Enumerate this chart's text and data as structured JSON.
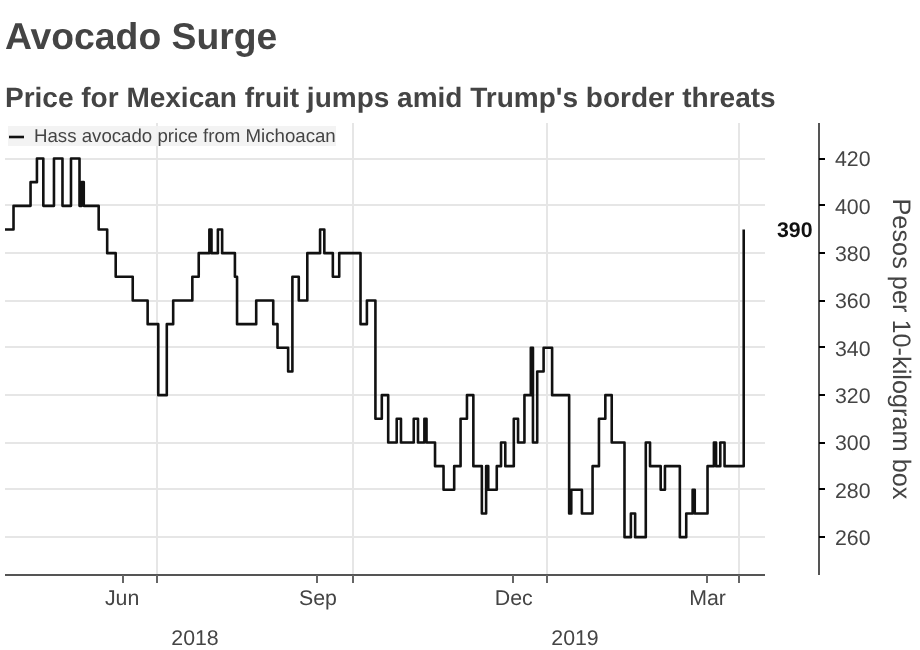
{
  "chart_data": {
    "type": "step",
    "title": "Avocado Surge",
    "subtitle": "Price for Mexican fruit jumps amid Trump's border threats",
    "ylabel": "Pesos per 10-kilogram box",
    "x": [
      "2018-04-21",
      "2018-04-24",
      "2018-04-25",
      "2018-05-02",
      "2018-05-03",
      "2018-05-06",
      "2018-05-08",
      "2018-05-09",
      "2018-05-13",
      "2018-05-14",
      "2018-05-17",
      "2018-05-18",
      "2018-05-21",
      "2018-05-22",
      "2018-05-23",
      "2018-05-26",
      "2018-05-27",
      "2018-05-28",
      "2018-06-02",
      "2018-06-04",
      "2018-06-06",
      "2018-06-08",
      "2018-06-10",
      "2018-06-12",
      "2018-06-19",
      "2018-06-20",
      "2018-06-25",
      "2018-06-27",
      "2018-06-30",
      "2018-07-02",
      "2018-07-06",
      "2018-07-09",
      "2018-07-17",
      "2018-07-18",
      "2018-07-21",
      "2018-07-25",
      "2018-07-26",
      "2018-07-27",
      "2018-07-30",
      "2018-08-01",
      "2018-08-05",
      "2018-08-07",
      "2018-08-08",
      "2018-08-16",
      "2018-08-17",
      "2018-08-23",
      "2018-08-25",
      "2018-08-27",
      "2018-08-30",
      "2018-09-01",
      "2018-09-03",
      "2018-09-06",
      "2018-09-09",
      "2018-09-10",
      "2018-09-15",
      "2018-09-16",
      "2018-09-18",
      "2018-09-20",
      "2018-09-22",
      "2018-09-25",
      "2018-10-01",
      "2018-10-05",
      "2018-10-08",
      "2018-10-12",
      "2018-10-15",
      "2018-10-18",
      "2018-10-22",
      "2018-10-24",
      "2018-10-28",
      "2018-10-30",
      "2018-11-01",
      "2018-11-04",
      "2018-11-05",
      "2018-11-07",
      "2018-11-09",
      "2018-11-11",
      "2018-11-13",
      "2018-11-17",
      "2018-11-18",
      "2018-11-19",
      "2018-11-21",
      "2018-11-22",
      "2018-11-24",
      "2018-11-25",
      "2018-11-27",
      "2018-11-28",
      "2018-12-01",
      "2018-12-03",
      "2018-12-04",
      "2018-12-06",
      "2018-12-08",
      "2018-12-10",
      "2018-12-12",
      "2018-12-13",
      "2018-12-16",
      "2018-12-18",
      "2018-12-19",
      "2018-12-21",
      "2018-12-22",
      "2018-12-24",
      "2018-12-25",
      "2018-12-27",
      "2018-12-28",
      "2018-12-30",
      "2018-12-31",
      "2019-01-03",
      "2019-01-07",
      "2019-01-11",
      "2019-01-12",
      "2019-01-15",
      "2019-01-17",
      "2019-01-19",
      "2019-01-22",
      "2019-01-25",
      "2019-01-28",
      "2019-01-31",
      "2019-02-03",
      "2019-02-06",
      "2019-02-07",
      "2019-02-09",
      "2019-02-11",
      "2019-02-13",
      "2019-02-16",
      "2019-02-18",
      "2019-02-20",
      "2019-02-23",
      "2019-02-25",
      "2019-03-01",
      "2019-03-04",
      "2019-03-06",
      "2019-03-07",
      "2019-03-08",
      "2019-03-10",
      "2019-03-11",
      "2019-03-15",
      "2019-03-17",
      "2019-03-20",
      "2019-03-21",
      "2019-03-23",
      "2019-03-25",
      "2019-04-01",
      "2019-04-03"
    ],
    "series": [
      {
        "name": "Hass avocado price from Michoacan",
        "color": "#111111",
        "values": [
          390,
          390,
          400,
          400,
          410,
          420,
          420,
          400,
          400,
          420,
          420,
          400,
          400,
          420,
          420,
          400,
          410,
          400,
          400,
          390,
          390,
          380,
          380,
          370,
          370,
          360,
          360,
          350,
          350,
          320,
          350,
          360,
          360,
          370,
          380,
          380,
          390,
          380,
          390,
          380,
          380,
          370,
          350,
          350,
          360,
          360,
          350,
          340,
          340,
          330,
          370,
          360,
          360,
          380,
          380,
          390,
          380,
          380,
          370,
          380,
          380,
          350,
          360,
          310,
          320,
          300,
          310,
          300,
          300,
          310,
          300,
          310,
          300,
          300,
          290,
          290,
          280,
          280,
          290,
          290,
          310,
          310,
          320,
          320,
          290,
          290,
          270,
          290,
          280,
          280,
          290,
          300,
          290,
          290,
          310,
          300,
          300,
          320,
          320,
          340,
          300,
          330,
          330,
          340,
          340,
          320,
          320,
          270,
          280,
          280,
          270,
          270,
          290,
          310,
          320,
          300,
          300,
          260,
          260,
          270,
          260,
          260,
          300,
          290,
          290,
          280,
          290,
          290,
          260,
          260,
          270,
          270,
          280,
          270,
          270,
          290,
          300,
          290,
          300,
          290,
          290,
          390
        ],
        "value_labels": [
          null,
          null,
          null,
          null,
          null,
          null,
          null,
          null,
          null,
          null,
          null,
          null,
          null,
          null,
          null,
          null,
          null,
          null,
          null,
          null,
          null,
          null,
          null,
          null,
          null,
          null,
          null,
          null,
          null,
          null,
          null,
          null,
          null,
          null,
          null,
          null,
          null,
          null,
          null,
          null,
          null,
          null,
          null,
          null,
          null,
          null,
          null,
          null,
          null,
          null,
          null,
          null,
          null,
          null,
          null,
          null,
          null,
          null,
          null,
          null,
          null,
          null,
          null,
          null,
          null,
          null,
          null,
          null,
          null,
          null,
          null,
          null,
          null,
          null,
          null,
          null,
          null,
          null,
          null,
          null,
          null,
          null,
          null,
          null,
          null,
          null,
          null,
          null,
          null,
          null,
          null,
          null,
          null,
          null,
          null,
          null,
          null,
          null,
          null,
          null,
          null,
          null,
          null,
          null,
          null,
          null,
          null,
          null,
          null,
          null,
          null,
          null,
          null,
          null,
          null,
          null,
          null,
          null,
          null,
          null,
          null,
          null,
          null,
          null,
          null,
          null,
          null,
          null,
          null,
          null,
          null,
          null,
          null,
          null,
          null,
          null,
          null,
          null,
          null,
          null,
          null,
          "390"
        ]
      }
    ],
    "xlim": [
      "2018-04-21",
      "2019-04-13"
    ],
    "xticks": [
      {
        "value": "2018-07-01",
        "label": null
      },
      {
        "value": "2018-10-01",
        "label": null
      },
      {
        "value": "2019-01-01",
        "label": null
      },
      {
        "value": "2019-04-01",
        "label": null
      },
      {
        "value": "2018-06-15",
        "label": "Jun"
      },
      {
        "value": "2018-09-15",
        "label": "Sep"
      },
      {
        "value": "2018-12-16",
        "label": "Dec"
      },
      {
        "value": "2019-03-17",
        "label": "Mar"
      }
    ],
    "annotations": [
      "2018",
      "2019"
    ],
    "ylim": [
      244,
      435
    ],
    "yticks": [
      260,
      280,
      300,
      320,
      340,
      360,
      380,
      400,
      420
    ],
    "grid": true,
    "legend": "top left"
  }
}
